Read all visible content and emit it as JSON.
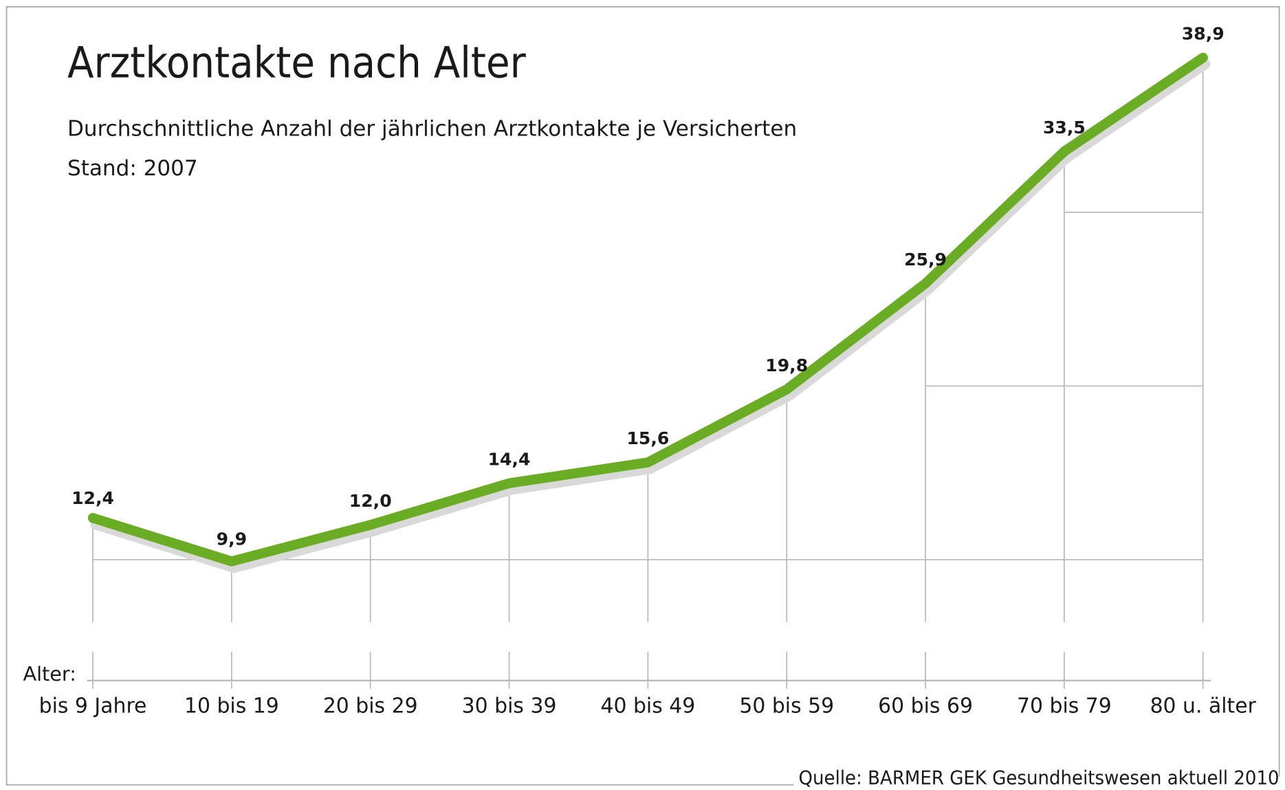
{
  "chart_data": {
    "type": "line",
    "title": "Arztkontakte nach Alter",
    "subtitle": "Durchschnittliche Anzahl der jährlichen Arztkontakte je Versicherten",
    "note": "Stand: 2007",
    "xlabel": "Alter:",
    "ylabel": "",
    "categories": [
      "bis 9 Jahre",
      "10 bis 19",
      "20 bis 29",
      "30 bis 39",
      "40 bis 49",
      "50 bis 59",
      "60 bis 69",
      "70 bis 79",
      "80 u. älter"
    ],
    "values": [
      12.4,
      9.9,
      12.0,
      14.4,
      15.6,
      19.8,
      25.9,
      33.5,
      38.9
    ],
    "value_labels": [
      "12,4",
      "9,9",
      "12,0",
      "14,4",
      "15,6",
      "19,8",
      "25,9",
      "33,5",
      "38,9"
    ],
    "gridlines_y": [
      10,
      20,
      30
    ],
    "grid": true,
    "ylim": [
      0,
      40
    ],
    "source": "Quelle: BARMER GEK Gesundheitswesen aktuell 2010",
    "colors": {
      "line": "#6aad24",
      "shadow": "#d9d9d9",
      "grid": "#b8bcc0",
      "border": "#a0a0a0",
      "text": "#1a1a1a"
    }
  }
}
